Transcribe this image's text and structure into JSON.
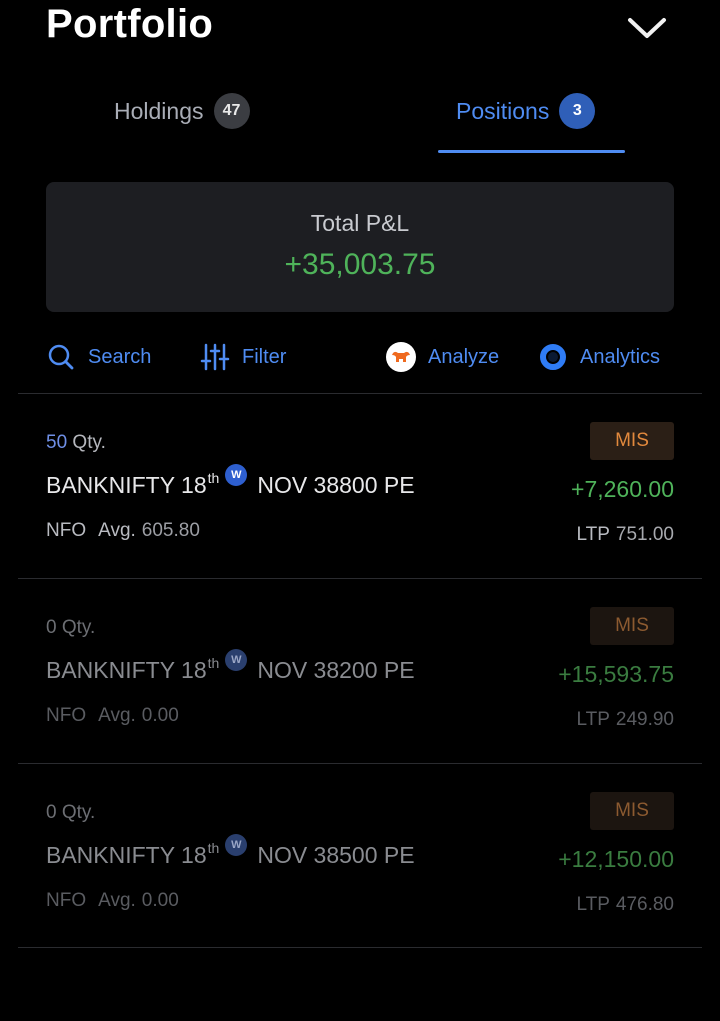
{
  "header": {
    "title": "Portfolio",
    "collapse_icon": "chevron-down-icon"
  },
  "tabs": [
    {
      "label": "Holdings",
      "count": "47",
      "active": false
    },
    {
      "label": "Positions",
      "count": "3",
      "active": true
    }
  ],
  "summary": {
    "label": "Total P&L",
    "value": "+35,003.75"
  },
  "toolbar": {
    "search_label": "Search",
    "filter_label": "Filter",
    "analyze_label": "Analyze",
    "analytics_label": "Analytics"
  },
  "positions": [
    {
      "qty": "50",
      "qty_unit": "Qty.",
      "symbol_prefix": "BANKNIFTY 18",
      "symbol_sup": "th",
      "weekly_badge": "W",
      "symbol_suffix": "NOV 38800 PE",
      "exchange": "NFO",
      "avg_label": "Avg.",
      "avg_value": "605.80",
      "product": "MIS",
      "pnl": "+7,260.00",
      "ltp_label": "LTP",
      "ltp_value": "751.00"
    },
    {
      "qty": "0",
      "qty_unit": "Qty.",
      "symbol_prefix": "BANKNIFTY 18",
      "symbol_sup": "th",
      "weekly_badge": "W",
      "symbol_suffix": "NOV 38200 PE",
      "exchange": "NFO",
      "avg_label": "Avg.",
      "avg_value": "0.00",
      "product": "MIS",
      "pnl": "+15,593.75",
      "ltp_label": "LTP",
      "ltp_value": "249.90"
    },
    {
      "qty": "0",
      "qty_unit": "Qty.",
      "symbol_prefix": "BANKNIFTY 18",
      "symbol_sup": "th",
      "weekly_badge": "W",
      "symbol_suffix": "NOV 38500 PE",
      "exchange": "NFO",
      "avg_label": "Avg.",
      "avg_value": "0.00",
      "product": "MIS",
      "pnl": "+12,150.00",
      "ltp_label": "LTP",
      "ltp_value": "476.80"
    }
  ],
  "colors": {
    "accent": "#4f8cf2",
    "profit": "#4fb35a",
    "product_tag": "#e2893d"
  }
}
